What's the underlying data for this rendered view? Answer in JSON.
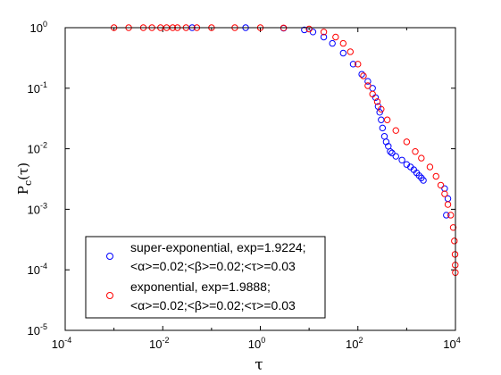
{
  "chart_data": {
    "type": "scatter",
    "title": "",
    "xlabel": "τ",
    "ylabel_main": "P",
    "ylabel_sub": "c",
    "ylabel_arg": "(τ)",
    "xscale": "log",
    "yscale": "log",
    "xlim": [
      0.0001,
      10000
    ],
    "ylim": [
      1e-05,
      1
    ],
    "x_ticks": [
      {
        "value": 0.0001,
        "base": "10",
        "exp": "-4"
      },
      {
        "value": 0.01,
        "base": "10",
        "exp": "-2"
      },
      {
        "value": 1,
        "base": "10",
        "exp": "0"
      },
      {
        "value": 100,
        "base": "10",
        "exp": "2"
      },
      {
        "value": 10000,
        "base": "10",
        "exp": "4"
      }
    ],
    "y_ticks": [
      {
        "value": 1,
        "base": "10",
        "exp": "0"
      },
      {
        "value": 0.1,
        "base": "10",
        "exp": "-1"
      },
      {
        "value": 0.01,
        "base": "10",
        "exp": "-2"
      },
      {
        "value": 0.001,
        "base": "10",
        "exp": "-3"
      },
      {
        "value": 0.0001,
        "base": "10",
        "exp": "-4"
      },
      {
        "value": 1e-05,
        "base": "10",
        "exp": "-5"
      }
    ],
    "grid": false,
    "legend_position": "bottom-left",
    "series": [
      {
        "name": "super-exponential, exp=1.9224;",
        "name_line2": "<α>=0.02;<β>=0.02;<τ>=0.03",
        "color": "#0000ff",
        "marker": "circle-open",
        "points": [
          [
            0.04,
            1.0
          ],
          [
            0.5,
            1.0
          ],
          [
            3,
            0.98
          ],
          [
            8,
            0.92
          ],
          [
            12,
            0.85
          ],
          [
            20,
            0.7
          ],
          [
            30,
            0.55
          ],
          [
            50,
            0.38
          ],
          [
            80,
            0.25
          ],
          [
            120,
            0.17
          ],
          [
            160,
            0.13
          ],
          [
            200,
            0.1
          ],
          [
            230,
            0.07
          ],
          [
            260,
            0.05
          ],
          [
            280,
            0.04
          ],
          [
            300,
            0.03
          ],
          [
            320,
            0.022
          ],
          [
            350,
            0.016
          ],
          [
            380,
            0.013
          ],
          [
            420,
            0.011
          ],
          [
            460,
            0.009
          ],
          [
            500,
            0.0085
          ],
          [
            600,
            0.0075
          ],
          [
            800,
            0.0065
          ],
          [
            1000,
            0.0055
          ],
          [
            1200,
            0.005
          ],
          [
            1400,
            0.0045
          ],
          [
            1600,
            0.004
          ],
          [
            1800,
            0.0036
          ],
          [
            2000,
            0.0033
          ],
          [
            2200,
            0.003
          ],
          [
            6000,
            0.0022
          ],
          [
            7000,
            0.0015
          ],
          [
            6500,
            0.0008
          ]
        ]
      },
      {
        "name": "exponential, exp=1.9888;",
        "name_line2": "<α>=0.02;<β>=0.02;<τ>=0.03",
        "color": "#ff0000",
        "marker": "circle-open",
        "points": [
          [
            0.001,
            1.0
          ],
          [
            0.002,
            1.0
          ],
          [
            0.004,
            1.0
          ],
          [
            0.006,
            1.0
          ],
          [
            0.009,
            1.0
          ],
          [
            0.012,
            1.0
          ],
          [
            0.016,
            1.0
          ],
          [
            0.02,
            1.0
          ],
          [
            0.03,
            1.0
          ],
          [
            0.05,
            1.0
          ],
          [
            0.1,
            1.0
          ],
          [
            0.3,
            1.0
          ],
          [
            1,
            1.0
          ],
          [
            3,
            0.99
          ],
          [
            10,
            0.95
          ],
          [
            20,
            0.85
          ],
          [
            35,
            0.7
          ],
          [
            50,
            0.55
          ],
          [
            70,
            0.4
          ],
          [
            100,
            0.25
          ],
          [
            130,
            0.16
          ],
          [
            160,
            0.11
          ],
          [
            200,
            0.08
          ],
          [
            250,
            0.06
          ],
          [
            300,
            0.045
          ],
          [
            400,
            0.03
          ],
          [
            600,
            0.02
          ],
          [
            1000,
            0.013
          ],
          [
            1500,
            0.009
          ],
          [
            2000,
            0.007
          ],
          [
            3000,
            0.005
          ],
          [
            4000,
            0.0035
          ],
          [
            5000,
            0.0025
          ],
          [
            6000,
            0.0018
          ],
          [
            7000,
            0.0012
          ],
          [
            8000,
            0.0008
          ],
          [
            9000,
            0.0005
          ],
          [
            9500,
            0.0003
          ],
          [
            9800,
            0.00018
          ],
          [
            9900,
            0.00012
          ],
          [
            9950,
            9e-05
          ]
        ]
      }
    ]
  }
}
